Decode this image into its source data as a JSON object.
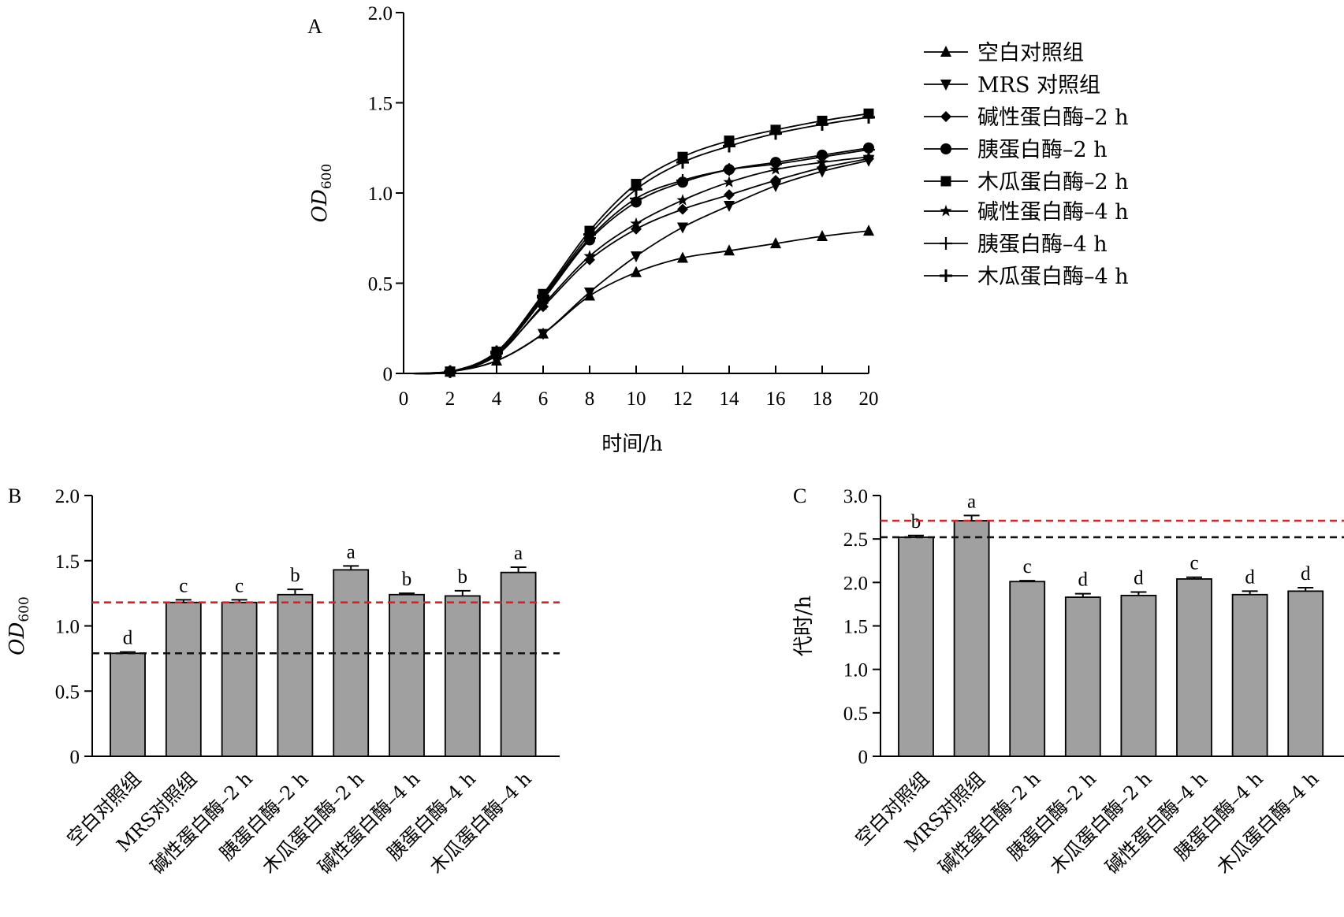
{
  "chart_data": [
    {
      "panel": "A",
      "type": "line",
      "xlabel": "时间/h",
      "ylabel_main": "OD",
      "ylabel_sub": "600",
      "xlim": [
        0,
        20
      ],
      "ylim": [
        0,
        2.0
      ],
      "xticks": [
        "0",
        "2",
        "4",
        "6",
        "8",
        "10",
        "12",
        "14",
        "16",
        "18",
        "20"
      ],
      "yticks": [
        "0",
        "0.5",
        "1.0",
        "1.5",
        "2.0"
      ],
      "legend_position": "right",
      "x": [
        0,
        2,
        4,
        6,
        8,
        10,
        12,
        14,
        16,
        18,
        20
      ],
      "series": [
        {
          "name": "空白对照组",
          "marker": "triangle-up",
          "values": [
            0,
            0.01,
            0.07,
            0.22,
            0.43,
            0.56,
            0.64,
            0.68,
            0.72,
            0.76,
            0.79
          ]
        },
        {
          "name": "MRS 对照组",
          "marker": "triangle-down",
          "values": [
            0,
            0.01,
            0.07,
            0.22,
            0.45,
            0.65,
            0.81,
            0.93,
            1.04,
            1.12,
            1.18
          ]
        },
        {
          "name": "碱性蛋白酶–2 h",
          "marker": "diamond",
          "values": [
            0,
            0.01,
            0.11,
            0.37,
            0.63,
            0.8,
            0.91,
            0.99,
            1.07,
            1.14,
            1.19
          ]
        },
        {
          "name": "胰蛋白酶–2 h",
          "marker": "circle",
          "values": [
            0,
            0.01,
            0.11,
            0.41,
            0.74,
            0.95,
            1.06,
            1.13,
            1.17,
            1.21,
            1.25
          ]
        },
        {
          "name": "木瓜蛋白酶–2 h",
          "marker": "square",
          "values": [
            0,
            0.01,
            0.12,
            0.44,
            0.79,
            1.05,
            1.2,
            1.29,
            1.35,
            1.4,
            1.44
          ]
        },
        {
          "name": "碱性蛋白酶–4 h",
          "marker": "star",
          "values": [
            0,
            0.01,
            0.1,
            0.38,
            0.65,
            0.83,
            0.96,
            1.06,
            1.13,
            1.17,
            1.2
          ]
        },
        {
          "name": "胰蛋白酶–4 h",
          "marker": "plus",
          "values": [
            0,
            0.01,
            0.11,
            0.42,
            0.75,
            0.97,
            1.07,
            1.13,
            1.16,
            1.2,
            1.24
          ]
        },
        {
          "name": "木瓜蛋白酶–4 h",
          "marker": "cross",
          "values": [
            0,
            0.01,
            0.12,
            0.43,
            0.77,
            1.02,
            1.17,
            1.26,
            1.33,
            1.38,
            1.42
          ]
        }
      ]
    },
    {
      "panel": "B",
      "type": "bar",
      "ylabel_main": "OD",
      "ylabel_sub": "600",
      "ylim": [
        0,
        2.0
      ],
      "yticks": [
        "0",
        "0.5",
        "1.0",
        "1.5",
        "2.0"
      ],
      "categories": [
        "空白对照组",
        "MRS对照组",
        "碱性蛋白酶–2 h",
        "胰蛋白酶–2 h",
        "木瓜蛋白酶–2 h",
        "碱性蛋白酶–4 h",
        "胰蛋白酶–4 h",
        "木瓜蛋白酶–4 h"
      ],
      "values": [
        0.79,
        1.18,
        1.18,
        1.24,
        1.43,
        1.24,
        1.23,
        1.41
      ],
      "errors": [
        0.01,
        0.02,
        0.02,
        0.04,
        0.03,
        0.01,
        0.04,
        0.04
      ],
      "significance": [
        "d",
        "c",
        "c",
        "b",
        "a",
        "b",
        "b",
        "a"
      ],
      "reference_lines": [
        {
          "value": 1.18,
          "color": "#e02020"
        },
        {
          "value": 0.79,
          "color": "#111111"
        }
      ]
    },
    {
      "panel": "C",
      "type": "bar",
      "ylabel": "代时/h",
      "ylim": [
        0,
        3.0
      ],
      "yticks": [
        "0",
        "0.5",
        "1.0",
        "1.5",
        "2.0",
        "2.5",
        "3.0"
      ],
      "categories": [
        "空白对照组",
        "MRS对照组",
        "碱性蛋白酶–2 h",
        "胰蛋白酶–2 h",
        "木瓜蛋白酶–2 h",
        "碱性蛋白酶–4 h",
        "胰蛋白酶–4 h",
        "木瓜蛋白酶–4 h"
      ],
      "values": [
        2.52,
        2.71,
        2.01,
        1.83,
        1.85,
        2.04,
        1.86,
        1.9
      ],
      "errors": [
        0.02,
        0.06,
        0.01,
        0.04,
        0.04,
        0.02,
        0.04,
        0.04
      ],
      "significance": [
        "b",
        "a",
        "c",
        "d",
        "d",
        "c",
        "d",
        "d"
      ],
      "reference_lines": [
        {
          "value": 2.71,
          "color": "#e02020"
        },
        {
          "value": 2.52,
          "color": "#111111"
        }
      ]
    }
  ],
  "bar_color": "#a0a0a0"
}
